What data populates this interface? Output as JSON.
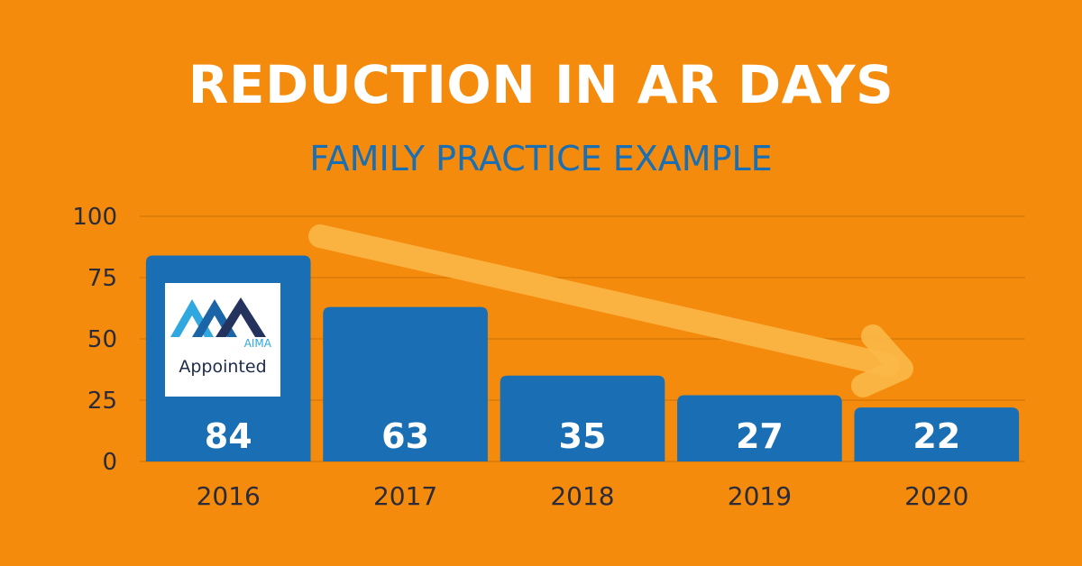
{
  "chart_data": {
    "type": "bar",
    "title": "REDUCTION IN AR DAYS",
    "subtitle": "FAMILY PRACTICE EXAMPLE",
    "categories": [
      "2016",
      "2017",
      "2018",
      "2019",
      "2020"
    ],
    "values": [
      84,
      63,
      35,
      27,
      22
    ],
    "data_labels": [
      "84",
      "63",
      "35",
      "27",
      "22"
    ],
    "y_ticks": [
      "0",
      "25",
      "50",
      "75",
      "100"
    ],
    "ylim": [
      0,
      100
    ],
    "grid": true,
    "xlabel": "",
    "ylabel": "",
    "annotations": [
      "downward trend arrow from 2017 to 2020"
    ]
  },
  "logo": {
    "brand": "AIMA",
    "label": "Appointed"
  },
  "colors": {
    "background": "#F48B0C",
    "bar": "#1A6FB4",
    "title": "#FFFFFF",
    "subtitle": "#1A6FB4",
    "arrow": "#FBB847",
    "gridline": "#D97A08"
  }
}
